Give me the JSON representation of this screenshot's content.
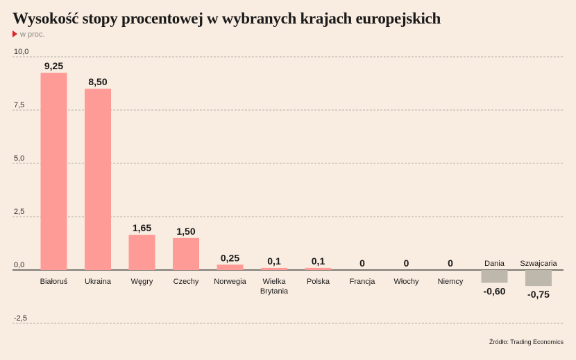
{
  "header": {
    "title": "Wysokość stopy procentowej w wybranych krajach europejskich",
    "subtitle": "w proc."
  },
  "footer": {
    "source": "Źródło: Trading Economics"
  },
  "colors": {
    "positive": "#ff9b96",
    "negative": "#bdb8ab",
    "grid": "#b5b0a8",
    "axis": "#333333"
  },
  "chart_data": {
    "type": "bar",
    "title": "Wysokość stopy procentowej w wybranych krajach europejskich",
    "ylabel": "w proc.",
    "xlabel": "",
    "ylim": [
      -2.5,
      10.0
    ],
    "yticks": [
      "-2,5",
      "0,0",
      "2,5",
      "5,0",
      "7,5",
      "10,0"
    ],
    "ytick_values": [
      -2.5,
      0,
      2.5,
      5,
      7.5,
      10
    ],
    "grid": true,
    "categories": [
      "Białoruś",
      "Ukraina",
      "Węgry",
      "Czechy",
      "Norwegia",
      "Wielka Brytania",
      "Polska",
      "Francja",
      "Włochy",
      "Niemcy",
      "Dania",
      "Szwajcaria"
    ],
    "category_lines": [
      [
        "Białoruś"
      ],
      [
        "Ukraina"
      ],
      [
        "Węgry"
      ],
      [
        "Czechy"
      ],
      [
        "Norwegia"
      ],
      [
        "Wielka",
        "Brytania"
      ],
      [
        "Polska"
      ],
      [
        "Francja"
      ],
      [
        "Włochy"
      ],
      [
        "Niemcy"
      ],
      [
        "Dania"
      ],
      [
        "Szwajcaria"
      ]
    ],
    "values": [
      9.25,
      8.5,
      1.65,
      1.5,
      0.25,
      0.1,
      0.1,
      0,
      0,
      0,
      -0.6,
      -0.75
    ],
    "value_labels": [
      "9,25",
      "8,50",
      "1,65",
      "1,50",
      "0,25",
      "0,1",
      "0,1",
      "0",
      "0",
      "0",
      "-0,60",
      "-0,75"
    ]
  }
}
